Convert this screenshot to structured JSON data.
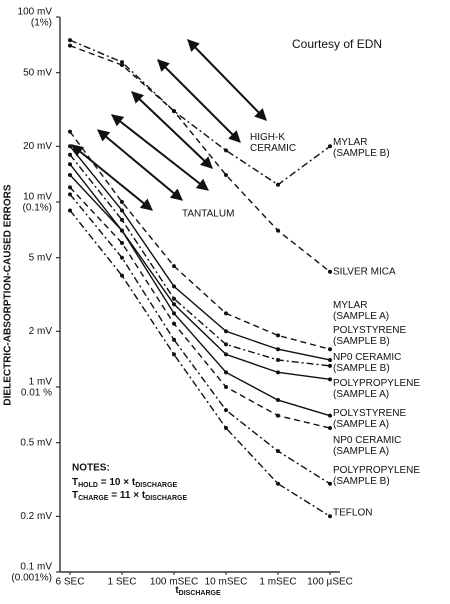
{
  "chart_data": {
    "type": "line",
    "y_log": true,
    "title": "Courtesy of EDN",
    "y_label": "DIELECTRIC-ABSORPTION-CAUSED ERRORS",
    "x_label": [
      "t",
      "DISCHARGE"
    ],
    "categories": [
      "6 SEC",
      "1 SEC",
      "100 mSEC",
      "10 mSEC",
      "1 mSEC",
      "100 µSEC"
    ],
    "ylim": [
      0.1,
      100
    ],
    "yticks": [
      {
        "value": 0.1,
        "label": "0.1 mV",
        "note": "(0.001%)"
      },
      {
        "value": 0.2,
        "label": "0.2 mV"
      },
      {
        "value": 0.5,
        "label": "0.5 mV"
      },
      {
        "value": 1,
        "label": "1 mV",
        "note": "0.01 %"
      },
      {
        "value": 2,
        "label": "2 mV"
      },
      {
        "value": 5,
        "label": "5 mV"
      },
      {
        "value": 10,
        "label": "10 mV",
        "note": "(0.1%)"
      },
      {
        "value": 20,
        "label": "20 mV"
      },
      {
        "value": 50,
        "label": "50 mV"
      },
      {
        "value": 100,
        "label": "100 mV",
        "note": "(1%)"
      }
    ],
    "annotations": [
      "HIGH-K CERAMIC",
      "TANTALUM"
    ],
    "notes": {
      "title": "NOTES:",
      "lines": [
        [
          "T",
          "HOLD",
          " = 10 × t",
          "DISCHARGE"
        ],
        [
          "T",
          "CHARGE",
          " = 11 × t",
          "DISCHARGE"
        ]
      ]
    },
    "series": [
      {
        "name": "MYLAR (SAMPLE B)",
        "color": "#111111",
        "dash": "7 3 2 3",
        "values": [
          75,
          57,
          31,
          19,
          12.4,
          20
        ]
      },
      {
        "name": "SILVER MICA",
        "color": "#111111",
        "dash": "6 4",
        "values": [
          70,
          55,
          31,
          14,
          7,
          4.2
        ]
      },
      {
        "name": "MYLAR (SAMPLE A)",
        "color": "#111111",
        "dash": "6 4",
        "values": [
          24,
          10,
          4.5,
          2.5,
          1.9,
          1.6
        ]
      },
      {
        "name": "POLYSTYRENE (SAMPLE B)",
        "color": "#111111",
        "dash": "",
        "values": [
          20,
          9,
          3.5,
          2,
          1.6,
          1.4
        ]
      },
      {
        "name": "NP0 CERAMIC (SAMPLE B)",
        "color": "#111111",
        "dash": "7 3 2 3",
        "values": [
          18,
          8,
          3,
          1.7,
          1.4,
          1.3
        ]
      },
      {
        "name": "POLYPROPYLENE (SAMPLE A)",
        "color": "#111111",
        "dash": "",
        "values": [
          16,
          7,
          2.8,
          1.5,
          1.2,
          1.1
        ]
      },
      {
        "name": "POLYSTYRENE (SAMPLE A)",
        "color": "#111111",
        "dash": "",
        "values": [
          14,
          7,
          2.5,
          1.2,
          0.85,
          0.7
        ]
      },
      {
        "name": "NP0 CERAMIC (SAMPLE A)",
        "color": "#111111",
        "dash": "6 4",
        "values": [
          12,
          6,
          2.2,
          1,
          0.7,
          0.6
        ]
      },
      {
        "name": "POLYPROPYLENE (SAMPLE B)",
        "color": "#111111",
        "dash": "7 3 2 3",
        "values": [
          11,
          5,
          1.8,
          0.75,
          0.45,
          0.3
        ]
      },
      {
        "name": "TEFLON",
        "color": "#111111",
        "dash": "7 3 2 3",
        "values": [
          9,
          4,
          1.5,
          0.6,
          0.3,
          0.2
        ]
      }
    ]
  }
}
